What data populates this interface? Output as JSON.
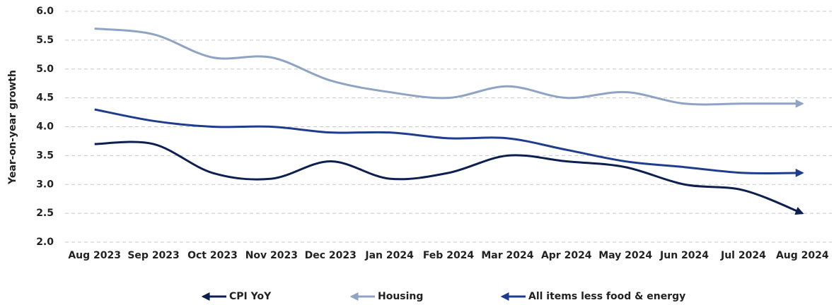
{
  "chart_data": {
    "type": "line",
    "y_label": "Year-on-year growth",
    "categories": [
      "Aug 2023",
      "Sep 2023",
      "Oct 2023",
      "Nov 2023",
      "Dec 2023",
      "Jan 2024",
      "Feb 2024",
      "Mar 2024",
      "Apr 2024",
      "May 2024",
      "Jun 2024",
      "Jul 2024",
      "Aug 2024"
    ],
    "series": [
      {
        "name": "CPI YoY",
        "color": "#0d1f4f",
        "values": [
          3.7,
          3.7,
          3.2,
          3.1,
          3.4,
          3.1,
          3.2,
          3.5,
          3.4,
          3.3,
          3.0,
          2.9,
          2.5
        ]
      },
      {
        "name": "Housing",
        "color": "#8fa3c4",
        "values": [
          5.7,
          5.6,
          5.2,
          5.2,
          4.8,
          4.6,
          4.5,
          4.7,
          4.5,
          4.6,
          4.4,
          4.4,
          4.4
        ]
      },
      {
        "name": "All items less food & energy",
        "color": "#1f3d8c",
        "values": [
          4.3,
          4.1,
          4.0,
          4.0,
          3.9,
          3.9,
          3.8,
          3.8,
          3.6,
          3.4,
          3.3,
          3.2,
          3.2
        ]
      }
    ],
    "ylim": [
      2.0,
      6.0
    ],
    "yticks": [
      {
        "value": 2.0,
        "label": "2.0"
      },
      2.5,
      {
        "value": 3.0,
        "label": "3.0"
      },
      3.5,
      {
        "value": 4.0,
        "label": "4.0"
      },
      4.5,
      {
        "value": 5.0,
        "label": "5.0"
      },
      5.5,
      {
        "value": 6.0,
        "label": "6.0"
      }
    ],
    "grid": true,
    "legend": "bottom",
    "smooth": true
  }
}
